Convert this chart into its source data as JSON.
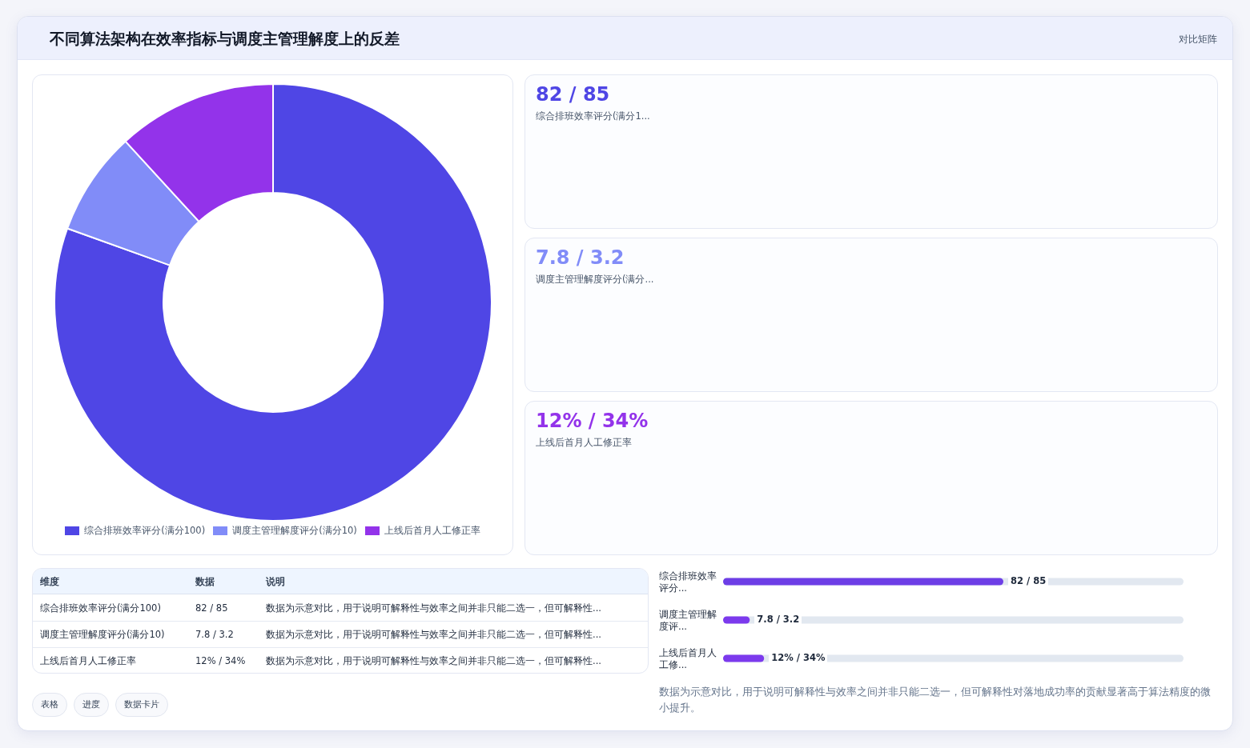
{
  "chart_data": [
    {
      "type": "donut",
      "title": "不同算法架构在效率指标与调度主管理解度上的反差",
      "categories": [
        "综合排班效率评分(满分100)",
        "调度主管理解度评分(满分10)",
        "上线后首月人工修正率"
      ],
      "values": [
        80.5,
        7.7,
        11.8
      ],
      "colors": [
        "#4f46e5",
        "#818cf8",
        "#9333ea"
      ],
      "legend": "bottom"
    },
    {
      "type": "other",
      "title": "对比矩阵",
      "annotations": [
        "82 / 85",
        "综合排班效率评分(满分1...",
        "7.8 / 3.2",
        "调度主管理解度评分(满分...",
        "12% / 34%",
        "上线后首月人工修正率"
      ]
    },
    {
      "type": "other",
      "annotations": [
        "维度",
        "数据",
        "说明",
        "综合排班效率评分(满分100)",
        "82 / 85",
        "数据为示意对比，用于说明可解释性与效率之间并非只能二选一，但可解释性...",
        "调度主管理解度评分(满分10)",
        "7.8 / 3.2",
        "数据为示意对比，用于说明可解释性与效率之间并非只能二选一，但可解释性...",
        "上线后首月人工修正率",
        "12% / 34%",
        "数据为示意对比，用于说明可解释性与效率之间并非只能二选一，但可解释性..."
      ]
    },
    {
      "type": "bar",
      "orientation": "horizontal",
      "categories": [
        "综合排班效率评分...",
        "调度主管理解度评...",
        "上线后首月人工修..."
      ],
      "values": [
        82,
        7.8,
        12
      ],
      "colors": [
        "#6d3ee6",
        "#7c3aed",
        "#7c3aed"
      ],
      "value_labels": [
        "82 / 85",
        "7.8 / 3.2",
        "12% / 34%"
      ],
      "annotations": [
        "数据为示意对比，用于说明可解释性与效率之间并非只能二选一，但可解释性对落地成功率的贡献显著高于算法精度的微小提升。"
      ]
    },
    {
      "type": "other",
      "annotations": [
        "表格",
        "进度",
        "数据卡片"
      ]
    }
  ]
}
